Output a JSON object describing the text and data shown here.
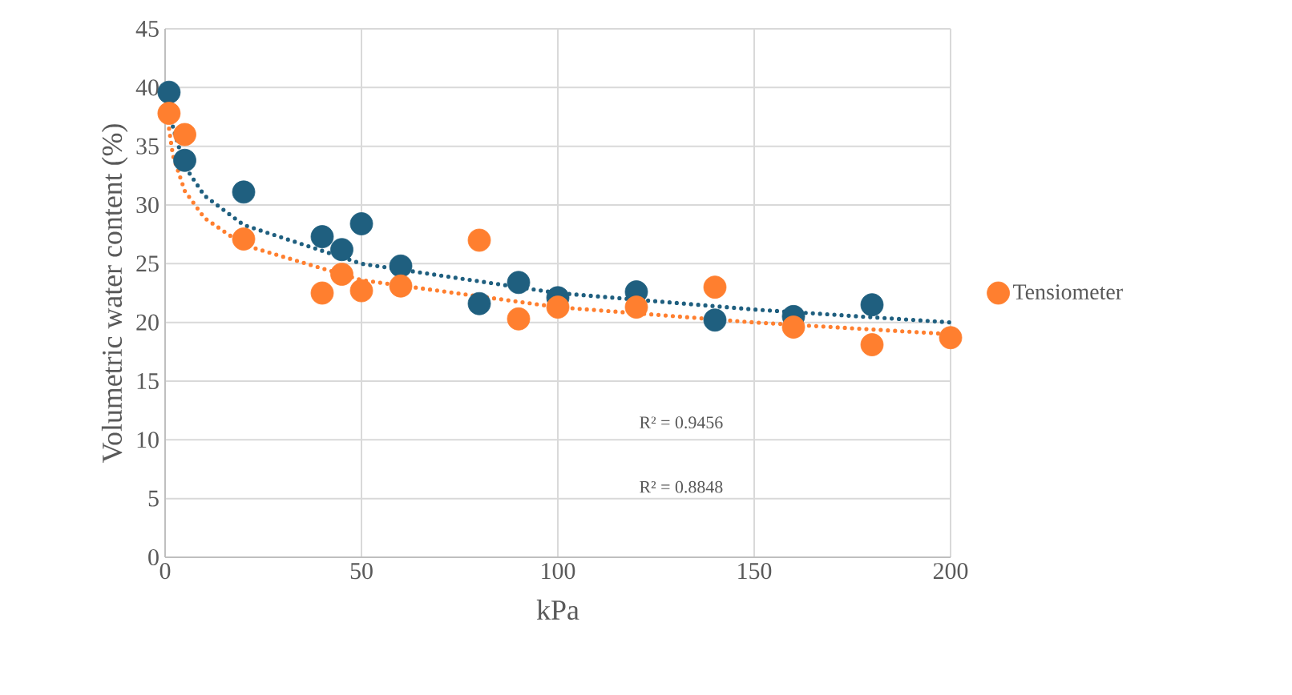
{
  "chart_data": {
    "type": "scatter",
    "xlabel": "kPa",
    "ylabel": "Volumetric water content (%)",
    "xlim": [
      0,
      200
    ],
    "xticks": [
      0,
      50,
      100,
      150,
      200
    ],
    "ylim": [
      0,
      45
    ],
    "yticks": [
      0,
      5,
      10,
      15,
      20,
      25,
      30,
      35,
      40,
      45
    ],
    "grid": true,
    "legend": "right",
    "marker": "circle",
    "series": [
      {
        "color": "#1f5f7f",
        "x": [
          1,
          5,
          20,
          40,
          45,
          50,
          60,
          80,
          90,
          100,
          120,
          140,
          160,
          180
        ],
        "values": [
          39.6,
          33.8,
          31.1,
          27.3,
          26.2,
          28.4,
          24.8,
          21.6,
          23.4,
          22.1,
          22.6,
          20.2,
          20.5,
          21.5
        ]
      },
      {
        "name": "Tensiometer",
        "color": "#ff7f2f",
        "x": [
          1,
          5,
          20,
          40,
          45,
          50,
          60,
          80,
          90,
          100,
          120,
          140,
          160,
          180,
          200
        ],
        "values": [
          37.8,
          36.0,
          27.1,
          22.5,
          24.1,
          22.7,
          23.1,
          27.0,
          20.3,
          21.3,
          21.3,
          23.0,
          19.6,
          18.1,
          18.7
        ]
      },
      {
        "type": "line",
        "line_style": "dotted",
        "marker": "none",
        "color": "#1f5f7f",
        "x": [
          1,
          2,
          5,
          10,
          20,
          50,
          100,
          150,
          200
        ],
        "values": [
          39.1,
          36.6,
          33.3,
          30.8,
          28.3,
          25.0,
          22.5,
          21.1,
          20.0
        ]
      },
      {
        "type": "line",
        "line_style": "dotted",
        "marker": "none",
        "color": "#ff7f2f",
        "x": [
          1,
          2,
          5,
          10,
          20,
          50,
          100,
          150,
          200
        ],
        "values": [
          36.5,
          34.2,
          31.2,
          28.9,
          26.6,
          23.6,
          21.3,
          20.0,
          19.0
        ]
      }
    ],
    "annotations": [
      "R² = 0.9456",
      "R² = 0.8848"
    ]
  }
}
